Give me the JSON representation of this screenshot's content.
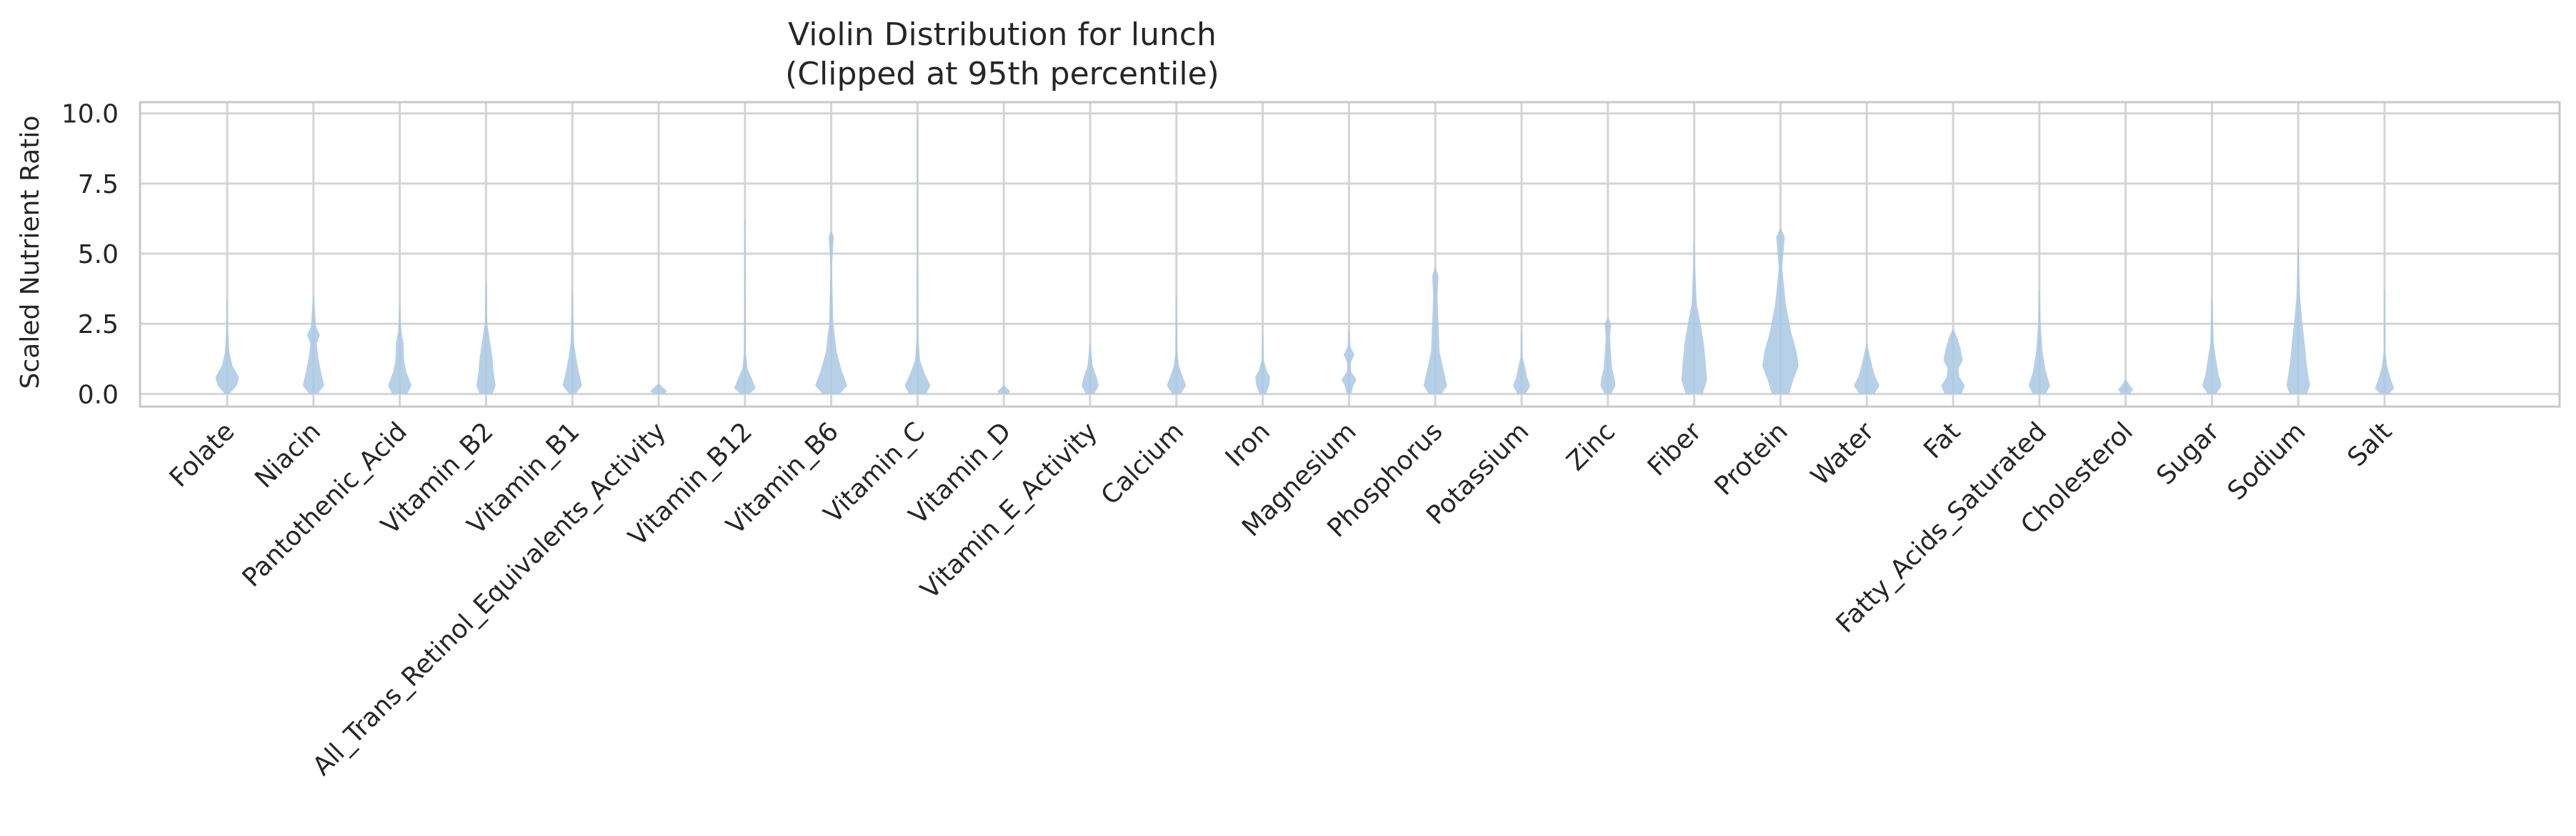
{
  "chart_data": {
    "type": "violin",
    "title": [
      "Violin Distribution for lunch",
      "(Clipped at 95th percentile)"
    ],
    "xlabel": "",
    "ylabel": "Scaled Nutrient Ratio",
    "ylim": [
      -0.45,
      10.4
    ],
    "yticks": [
      "0.0",
      "2.5",
      "5.0",
      "7.5",
      "10.0"
    ],
    "grid": true,
    "legend": "none",
    "color": "#a9c8e4",
    "categories": [
      "Folate",
      "Niacin",
      "Pantothenic_Acid",
      "Vitamin_B2",
      "Vitamin_B1",
      "All_Trans_Retinol_Equivalents_Activity",
      "Vitamin_B12",
      "Vitamin_B6",
      "Vitamin_C",
      "Vitamin_D",
      "Vitamin_E_Activity",
      "Calcium",
      "Iron",
      "Magnesium",
      "Phosphorus",
      "Potassium",
      "Zinc",
      "Fiber",
      "Protein",
      "Water",
      "Fat",
      "Fatty_Acids_Saturated",
      "Cholesterol",
      "Sugar",
      "Sodium",
      "Salt"
    ],
    "series": [
      {
        "category": "Folate",
        "max": 3.4,
        "shape": [
          [
            0,
            0.1
          ],
          [
            0.3,
            0.45
          ],
          [
            0.6,
            0.55
          ],
          [
            1.0,
            0.25
          ],
          [
            1.5,
            0.1
          ],
          [
            2.5,
            0.03
          ],
          [
            3.4,
            0.02
          ]
        ]
      },
      {
        "category": "Niacin",
        "max": 3.5,
        "shape": [
          [
            0,
            0.2
          ],
          [
            0.3,
            0.5
          ],
          [
            0.8,
            0.35
          ],
          [
            1.3,
            0.22
          ],
          [
            1.8,
            0.15
          ],
          [
            2.1,
            0.3
          ],
          [
            2.4,
            0.12
          ],
          [
            3.5,
            0.02
          ]
        ]
      },
      {
        "category": "Pantothenic_Acid",
        "max": 3.1,
        "shape": [
          [
            0,
            0.35
          ],
          [
            0.3,
            0.55
          ],
          [
            0.8,
            0.3
          ],
          [
            1.2,
            0.2
          ],
          [
            1.8,
            0.18
          ],
          [
            2.2,
            0.08
          ],
          [
            3.1,
            0.02
          ]
        ]
      },
      {
        "category": "Vitamin_B2",
        "max": 4.0,
        "shape": [
          [
            0,
            0.3
          ],
          [
            0.3,
            0.45
          ],
          [
            0.8,
            0.35
          ],
          [
            1.3,
            0.3
          ],
          [
            1.8,
            0.2
          ],
          [
            2.5,
            0.06
          ],
          [
            4.0,
            0.02
          ]
        ]
      },
      {
        "category": "Vitamin_B1",
        "max": 3.6,
        "shape": [
          [
            0,
            0.15
          ],
          [
            0.3,
            0.45
          ],
          [
            0.8,
            0.3
          ],
          [
            1.2,
            0.2
          ],
          [
            1.8,
            0.08
          ],
          [
            3.6,
            0.02
          ]
        ]
      },
      {
        "category": "All_Trans_Retinol_Equivalents_Activity",
        "max": 0.35,
        "shape": [
          [
            0,
            0.25
          ],
          [
            0.1,
            0.4
          ],
          [
            0.2,
            0.25
          ],
          [
            0.35,
            0.05
          ]
        ]
      },
      {
        "category": "Vitamin_B12",
        "max": 6.3,
        "shape": [
          [
            0,
            0.2
          ],
          [
            0.2,
            0.5
          ],
          [
            0.5,
            0.35
          ],
          [
            0.9,
            0.12
          ],
          [
            1.5,
            0.04
          ],
          [
            6.3,
            0.02
          ]
        ]
      },
      {
        "category": "Vitamin_B6",
        "max": 5.8,
        "shape": [
          [
            0,
            0.4
          ],
          [
            0.3,
            0.75
          ],
          [
            0.8,
            0.5
          ],
          [
            1.5,
            0.25
          ],
          [
            2.5,
            0.1
          ],
          [
            4.5,
            0.03
          ],
          [
            5.6,
            0.12
          ],
          [
            5.8,
            0.02
          ]
        ]
      },
      {
        "category": "Vitamin_C",
        "max": 9.8,
        "shape": [
          [
            0,
            0.4
          ],
          [
            0.3,
            0.6
          ],
          [
            0.7,
            0.35
          ],
          [
            1.2,
            0.12
          ],
          [
            2.0,
            0.04
          ],
          [
            5.0,
            0.02
          ],
          [
            9.8,
            0.015
          ]
        ]
      },
      {
        "category": "Vitamin_D",
        "max": 0.3,
        "shape": [
          [
            0,
            0.2
          ],
          [
            0.1,
            0.3
          ],
          [
            0.2,
            0.15
          ],
          [
            0.3,
            0.03
          ]
        ]
      },
      {
        "category": "Vitamin_E_Activity",
        "max": 1.8,
        "shape": [
          [
            0,
            0.2
          ],
          [
            0.3,
            0.4
          ],
          [
            0.6,
            0.3
          ],
          [
            1.0,
            0.12
          ],
          [
            1.8,
            0.02
          ]
        ]
      },
      {
        "category": "Calcium",
        "max": 3.5,
        "shape": [
          [
            0,
            0.2
          ],
          [
            0.3,
            0.45
          ],
          [
            0.6,
            0.3
          ],
          [
            1.0,
            0.12
          ],
          [
            1.5,
            0.04
          ],
          [
            3.5,
            0.02
          ]
        ]
      },
      {
        "category": "Iron",
        "max": 2.1,
        "shape": [
          [
            0,
            0.15
          ],
          [
            0.3,
            0.3
          ],
          [
            0.6,
            0.35
          ],
          [
            0.8,
            0.2
          ],
          [
            1.2,
            0.05
          ],
          [
            2.1,
            0.02
          ]
        ]
      },
      {
        "category": "Magnesium",
        "max": 2.3,
        "shape": [
          [
            0,
            0.1
          ],
          [
            0.3,
            0.2
          ],
          [
            0.5,
            0.35
          ],
          [
            0.8,
            0.1
          ],
          [
            1.1,
            0.08
          ],
          [
            1.4,
            0.25
          ],
          [
            1.7,
            0.06
          ],
          [
            2.3,
            0.02
          ]
        ]
      },
      {
        "category": "Phosphorus",
        "max": 4.5,
        "shape": [
          [
            0,
            0.3
          ],
          [
            0.3,
            0.55
          ],
          [
            0.8,
            0.4
          ],
          [
            1.5,
            0.2
          ],
          [
            2.5,
            0.15
          ],
          [
            3.5,
            0.1
          ],
          [
            4.2,
            0.15
          ],
          [
            4.5,
            0.02
          ]
        ]
      },
      {
        "category": "Potassium",
        "max": 2.2,
        "shape": [
          [
            0,
            0.2
          ],
          [
            0.3,
            0.4
          ],
          [
            0.6,
            0.25
          ],
          [
            1.0,
            0.15
          ],
          [
            1.3,
            0.05
          ],
          [
            2.2,
            0.02
          ]
        ]
      },
      {
        "category": "Zinc",
        "max": 2.7,
        "shape": [
          [
            0,
            0.15
          ],
          [
            0.3,
            0.35
          ],
          [
            0.6,
            0.3
          ],
          [
            0.9,
            0.2
          ],
          [
            1.4,
            0.15
          ],
          [
            2.0,
            0.1
          ],
          [
            2.5,
            0.15
          ],
          [
            2.7,
            0.02
          ]
        ]
      },
      {
        "category": "Fiber",
        "max": 5.4,
        "shape": [
          [
            0,
            0.4
          ],
          [
            0.5,
            0.6
          ],
          [
            1.0,
            0.55
          ],
          [
            1.8,
            0.45
          ],
          [
            2.5,
            0.3
          ],
          [
            3.2,
            0.12
          ],
          [
            4.5,
            0.05
          ],
          [
            5.4,
            0.02
          ]
        ]
      },
      {
        "category": "Protein",
        "max": 5.9,
        "shape": [
          [
            0,
            0.4
          ],
          [
            0.5,
            0.6
          ],
          [
            1.0,
            0.85
          ],
          [
            1.5,
            0.75
          ],
          [
            2.2,
            0.5
          ],
          [
            3.2,
            0.25
          ],
          [
            4.5,
            0.08
          ],
          [
            5.6,
            0.2
          ],
          [
            5.9,
            0.02
          ]
        ]
      },
      {
        "category": "Water",
        "max": 1.8,
        "shape": [
          [
            0,
            0.35
          ],
          [
            0.3,
            0.6
          ],
          [
            0.6,
            0.4
          ],
          [
            1.0,
            0.25
          ],
          [
            1.5,
            0.1
          ],
          [
            1.8,
            0.02
          ]
        ]
      },
      {
        "category": "Fat",
        "max": 2.3,
        "shape": [
          [
            0,
            0.4
          ],
          [
            0.3,
            0.55
          ],
          [
            0.6,
            0.3
          ],
          [
            0.9,
            0.25
          ],
          [
            1.2,
            0.45
          ],
          [
            1.6,
            0.35
          ],
          [
            2.0,
            0.2
          ],
          [
            2.3,
            0.02
          ]
        ]
      },
      {
        "category": "Fatty_Acids_Saturated",
        "max": 3.7,
        "shape": [
          [
            0,
            0.3
          ],
          [
            0.3,
            0.5
          ],
          [
            0.8,
            0.3
          ],
          [
            1.5,
            0.15
          ],
          [
            2.5,
            0.06
          ],
          [
            3.7,
            0.02
          ]
        ]
      },
      {
        "category": "Cholesterol",
        "max": 0.5,
        "shape": [
          [
            0,
            0.2
          ],
          [
            0.15,
            0.35
          ],
          [
            0.3,
            0.2
          ],
          [
            0.5,
            0.03
          ]
        ]
      },
      {
        "category": "Sugar",
        "max": 3.4,
        "shape": [
          [
            0,
            0.2
          ],
          [
            0.3,
            0.45
          ],
          [
            0.7,
            0.3
          ],
          [
            1.2,
            0.2
          ],
          [
            1.8,
            0.08
          ],
          [
            3.4,
            0.02
          ]
        ]
      },
      {
        "category": "Sodium",
        "max": 5.2,
        "shape": [
          [
            0,
            0.4
          ],
          [
            0.3,
            0.55
          ],
          [
            1.0,
            0.4
          ],
          [
            1.8,
            0.3
          ],
          [
            2.5,
            0.2
          ],
          [
            3.5,
            0.08
          ],
          [
            5.2,
            0.02
          ]
        ]
      },
      {
        "category": "Salt",
        "max": 3.7,
        "shape": [
          [
            0,
            0.2
          ],
          [
            0.2,
            0.45
          ],
          [
            0.5,
            0.3
          ],
          [
            1.0,
            0.12
          ],
          [
            1.5,
            0.04
          ],
          [
            3.7,
            0.02
          ]
        ]
      }
    ]
  }
}
